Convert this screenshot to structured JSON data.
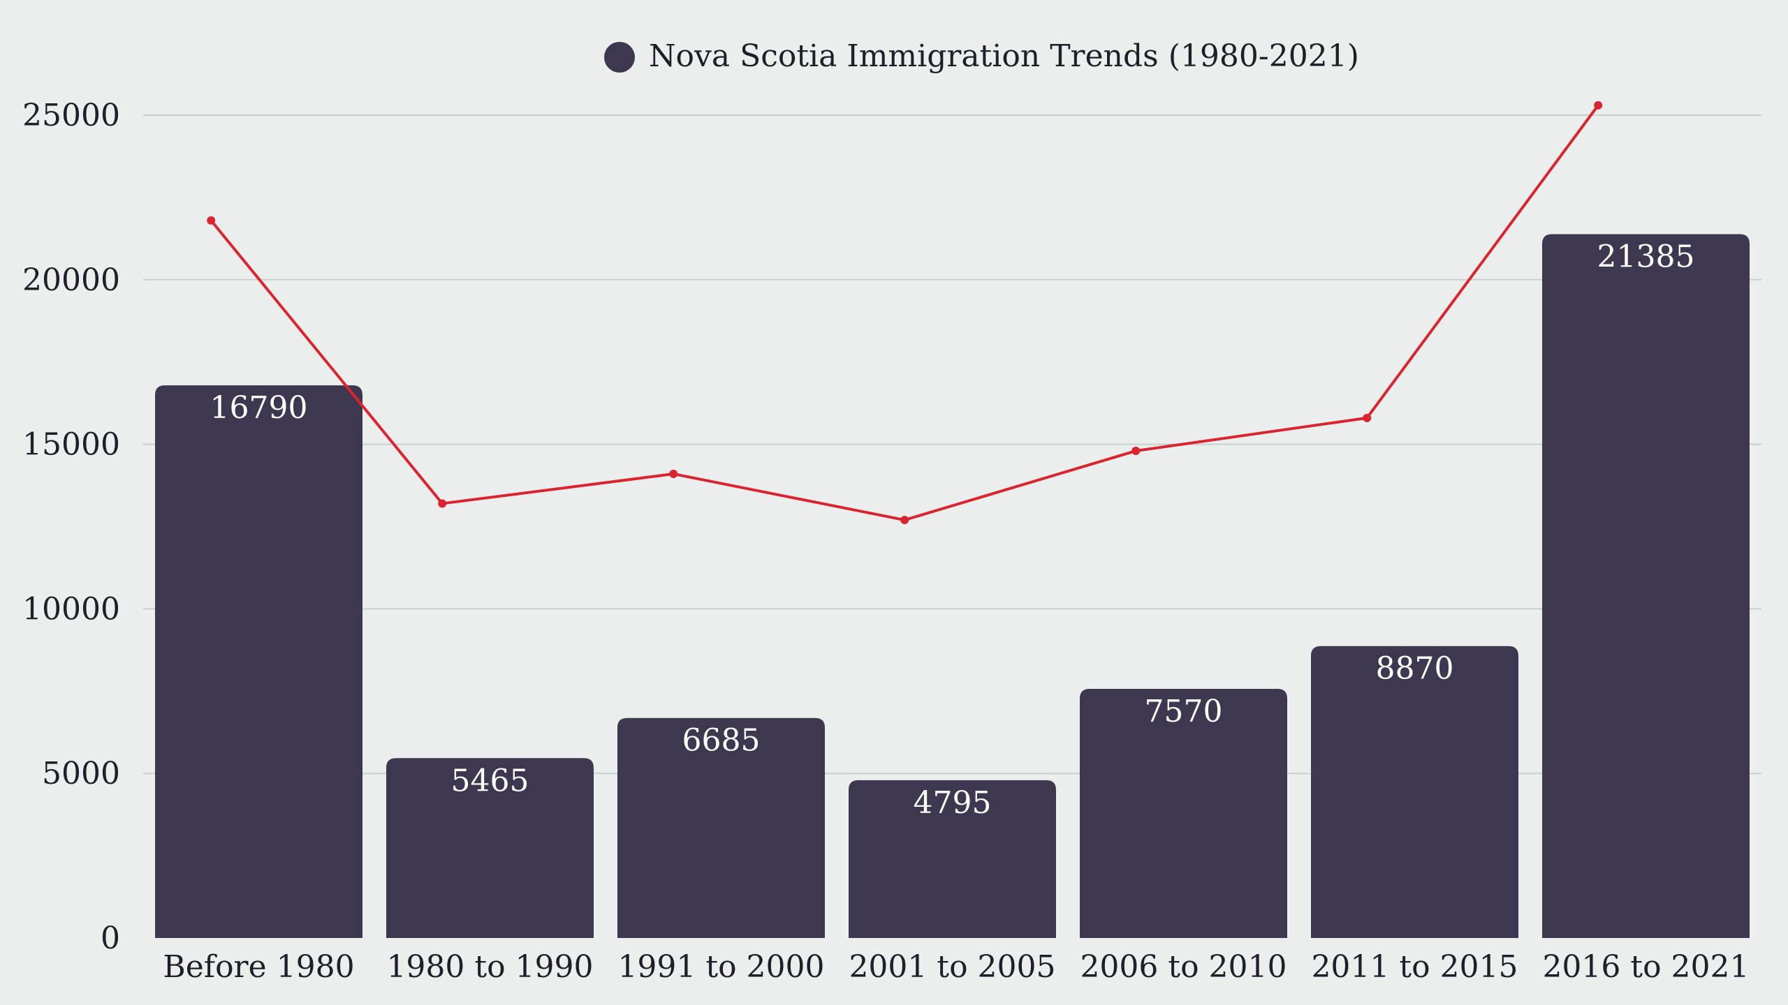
{
  "chart_data": {
    "type": "bar",
    "title": "",
    "xlabel": "",
    "ylabel": "",
    "ylim": [
      0,
      26000
    ],
    "y_ticks": [
      0,
      5000,
      10000,
      15000,
      20000,
      25000
    ],
    "grid": true,
    "legend_placement": "top-center",
    "categories": [
      "Before 1980",
      "1980 to 1990",
      "1991 to 2000",
      "2001 to 2005",
      "2006 to 2010",
      "2011 to 2015",
      "2016 to 2021"
    ],
    "series": [
      {
        "name": "Nova Scotia Immigration Trends (1980-2021)",
        "type": "bar",
        "color": "#3d384f",
        "values": [
          16790,
          5465,
          6685,
          4795,
          7570,
          8870,
          21385
        ]
      },
      {
        "type": "line",
        "color": "#d92530",
        "values": [
          21800,
          13200,
          14100,
          12700,
          14800,
          15800,
          25300
        ]
      }
    ]
  }
}
